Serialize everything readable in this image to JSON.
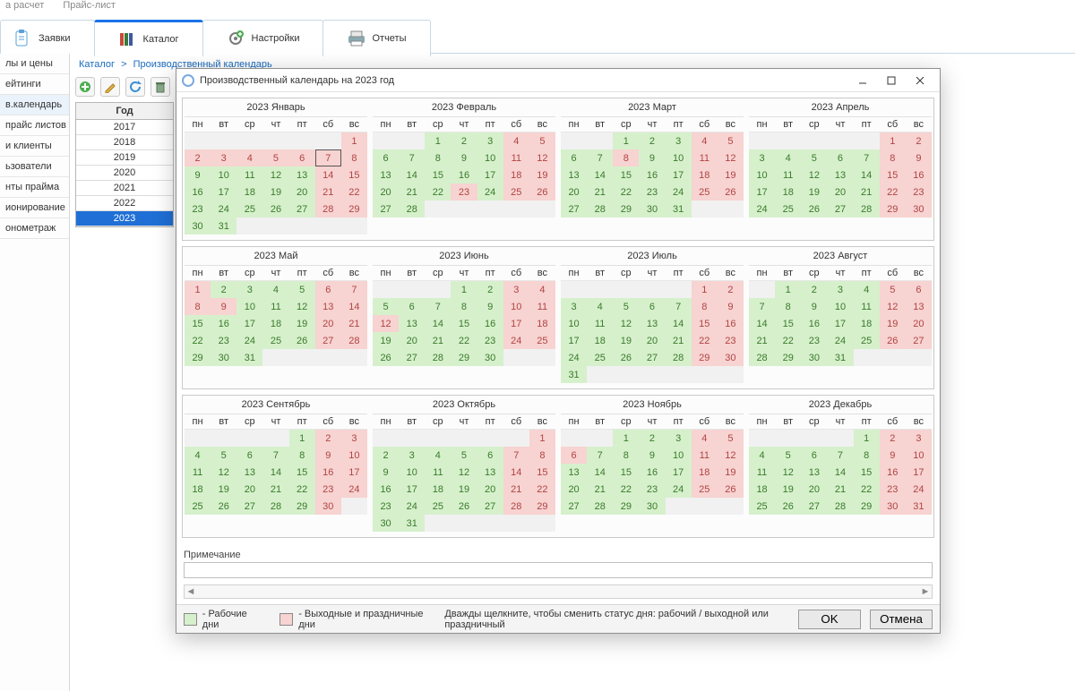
{
  "top_menu": {
    "item1": "а расчет",
    "item2": "Прайс-лист"
  },
  "tabs": {
    "items": [
      {
        "label": "Заявки"
      },
      {
        "label": "Каталог"
      },
      {
        "label": "Настройки"
      },
      {
        "label": "Отчеты"
      }
    ],
    "active_index": 1
  },
  "left_nav": {
    "items": [
      "лы и цены",
      "ейтинги",
      "в.календарь",
      "прайс листов",
      "и клиенты",
      "ьзователи",
      "нты прайма",
      "ионирование",
      "онометраж"
    ],
    "active_index": 2
  },
  "breadcrumb": {
    "root": "Каталог",
    "page": "Производственный календарь"
  },
  "year_panel": {
    "header": "Год",
    "years": [
      "2017",
      "2018",
      "2019",
      "2020",
      "2021",
      "2022",
      "2023"
    ],
    "selected": "2023"
  },
  "dialog": {
    "title": "Производственный календарь на 2023 год",
    "note_label": "Примечание",
    "note_value": "",
    "legend_work": "- Рабочие дни",
    "legend_holiday": "- Выходные и праздничные дни",
    "tip": "Дважды щелкните, чтобы сменить статус дня: рабочий / выходной или праздничный",
    "ok": "OK",
    "cancel": "Отмена",
    "colors": {
      "work_bg": "#d6f0cc",
      "work_fg": "#3a7a2a",
      "holiday_bg": "#f7d3d1",
      "holiday_fg": "#b04444",
      "empty_bg": "#f1f1f1",
      "today_border": "#555555"
    },
    "weekdays": [
      "пн",
      "вт",
      "ср",
      "чт",
      "пт",
      "сб",
      "вс"
    ],
    "months": [
      {
        "name": "2023 Январь",
        "first_weekday": 6,
        "days": 31,
        "today": 7,
        "holiday_days": [
          1,
          2,
          3,
          4,
          5,
          6,
          7,
          8,
          14,
          15,
          21,
          22,
          28,
          29
        ]
      },
      {
        "name": "2023 Февраль",
        "first_weekday": 2,
        "days": 28,
        "holiday_days": [
          4,
          5,
          11,
          12,
          18,
          19,
          23,
          25,
          26
        ]
      },
      {
        "name": "2023 Март",
        "first_weekday": 2,
        "days": 31,
        "holiday_days": [
          4,
          5,
          8,
          11,
          12,
          18,
          19,
          25,
          26
        ]
      },
      {
        "name": "2023 Апрель",
        "first_weekday": 5,
        "days": 30,
        "holiday_days": [
          1,
          2,
          8,
          9,
          15,
          16,
          22,
          23,
          29,
          30
        ]
      },
      {
        "name": "2023 Май",
        "first_weekday": 0,
        "days": 31,
        "holiday_days": [
          1,
          6,
          7,
          8,
          9,
          13,
          14,
          20,
          21,
          27,
          28
        ]
      },
      {
        "name": "2023 Июнь",
        "first_weekday": 3,
        "days": 30,
        "holiday_days": [
          3,
          4,
          10,
          11,
          12,
          17,
          18,
          24,
          25
        ]
      },
      {
        "name": "2023 Июль",
        "first_weekday": 5,
        "days": 31,
        "holiday_days": [
          1,
          2,
          8,
          9,
          15,
          16,
          22,
          23,
          29,
          30
        ]
      },
      {
        "name": "2023 Август",
        "first_weekday": 1,
        "days": 31,
        "holiday_days": [
          5,
          6,
          12,
          13,
          19,
          20,
          26,
          27
        ]
      },
      {
        "name": "2023 Сентябрь",
        "first_weekday": 4,
        "days": 30,
        "holiday_days": [
          2,
          3,
          9,
          10,
          16,
          17,
          23,
          24,
          30
        ]
      },
      {
        "name": "2023 Октябрь",
        "first_weekday": 6,
        "days": 31,
        "holiday_days": [
          1,
          7,
          8,
          14,
          15,
          21,
          22,
          28,
          29
        ]
      },
      {
        "name": "2023 Ноябрь",
        "first_weekday": 2,
        "days": 30,
        "holiday_days": [
          4,
          5,
          6,
          11,
          12,
          18,
          19,
          25,
          26
        ]
      },
      {
        "name": "2023 Декабрь",
        "first_weekday": 4,
        "days": 31,
        "holiday_days": [
          2,
          3,
          9,
          10,
          16,
          17,
          23,
          24,
          30,
          31
        ]
      }
    ]
  }
}
